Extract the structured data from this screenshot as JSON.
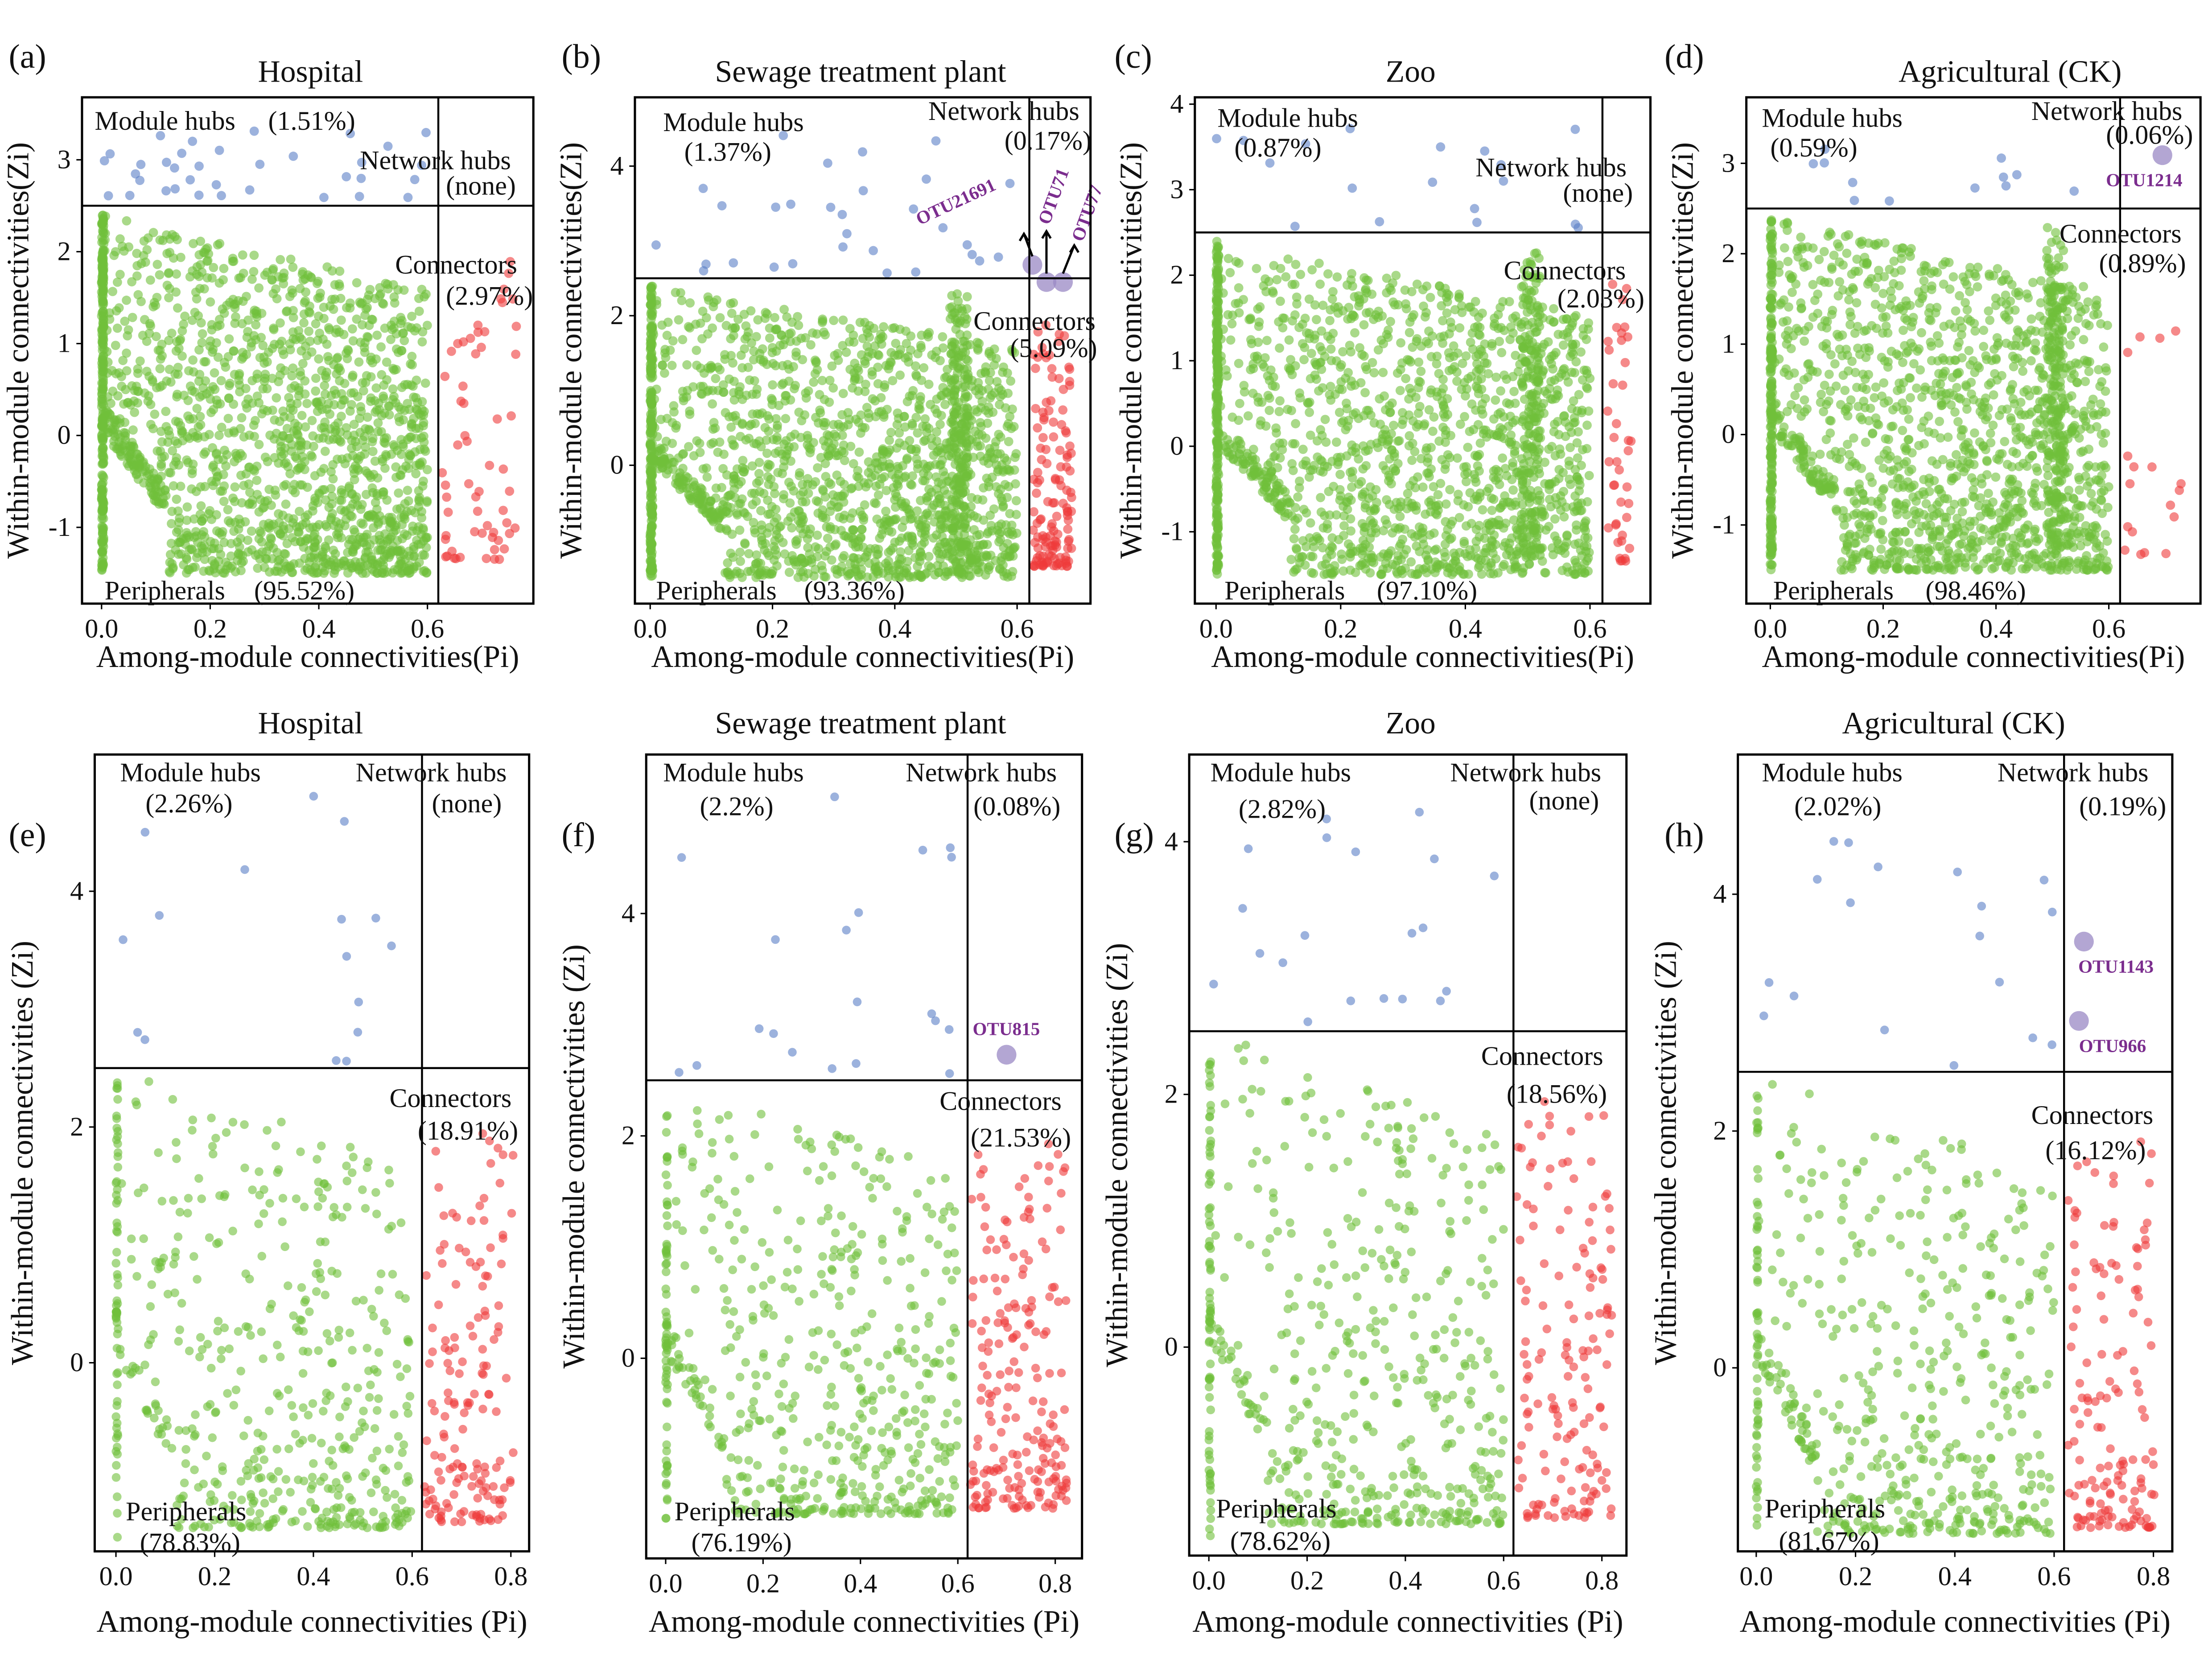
{
  "colors": {
    "peripheral": "#6fbf3a",
    "connector": "#ee3b3b",
    "module_hub": "#5a7fc6",
    "network_hub": "#9a88c4",
    "highlight_text": "#7b2d8e"
  },
  "chart_data": [
    {
      "panel": "(a)",
      "type": "scatter",
      "title": "Hospital",
      "xlabel": "Among-module connectivities(Pi)",
      "ylabel": "Within-module connectivities(Zi)",
      "xlim": [
        -0.036,
        0.795
      ],
      "ylim": [
        -1.83,
        3.68
      ],
      "xticks": [
        "0.0",
        "0.2",
        "0.4",
        "0.6"
      ],
      "yticks": [
        "-1",
        "0",
        "1",
        "2",
        "3"
      ],
      "thresholds": {
        "pi": 0.62,
        "zi": 2.5
      },
      "roles": {
        "module_hubs": {
          "label": "Module hubs",
          "pct": "(1.51%)"
        },
        "network_hubs": {
          "label": "Network hubs",
          "pct": "(none)"
        },
        "connectors": {
          "label": "Connectors",
          "pct": "(2.97%)"
        },
        "peripherals": {
          "label": "Peripherals",
          "pct": "(95.52%)"
        }
      },
      "approx_counts": {
        "peripherals": 1800,
        "connectors": 60,
        "module_hubs": 35
      },
      "highlights": []
    },
    {
      "panel": "(b)",
      "type": "scatter",
      "title": "Sewage treatment plant",
      "xlabel": "Among-module connectivities(Pi)",
      "ylabel": "Within-module connectivities(Zi)",
      "xlim": [
        -0.025,
        0.72
      ],
      "ylim": [
        -1.85,
        4.92
      ],
      "xticks": [
        "0.0",
        "0.2",
        "0.4",
        "0.6"
      ],
      "yticks": [
        "0",
        "2",
        "4"
      ],
      "thresholds": {
        "pi": 0.62,
        "zi": 2.5
      },
      "roles": {
        "module_hubs": {
          "label": "Module hubs",
          "pct": "(1.37%)"
        },
        "network_hubs": {
          "label": "Network hubs",
          "pct": "(0.17%)"
        },
        "connectors": {
          "label": "Connectors",
          "pct": "(5.09%)"
        },
        "peripherals": {
          "label": "Peripherals",
          "pct": "(93.36%)"
        }
      },
      "approx_counts": {
        "peripherals": 1900,
        "connectors": 130,
        "module_hubs": 30
      },
      "highlights": [
        {
          "label": "OTU21691",
          "pi": 0.625,
          "zi": 2.68
        },
        {
          "label": "OTU71",
          "pi": 0.648,
          "zi": 2.45
        },
        {
          "label": "OTU77",
          "pi": 0.675,
          "zi": 2.45
        }
      ]
    },
    {
      "panel": "(c)",
      "type": "scatter",
      "title": "Zoo",
      "xlabel": "Among-module connectivities(Pi)",
      "ylabel": "Within-module connectivities(Zi)",
      "xlim": [
        -0.034,
        0.697
      ],
      "ylim": [
        -1.84,
        4.08
      ],
      "xticks": [
        "0.0",
        "0.2",
        "0.4",
        "0.6"
      ],
      "yticks": [
        "-1",
        "0",
        "1",
        "2",
        "3",
        "4"
      ],
      "thresholds": {
        "pi": 0.62,
        "zi": 2.5
      },
      "roles": {
        "module_hubs": {
          "label": "Module hubs",
          "pct": "(0.87%)"
        },
        "network_hubs": {
          "label": "Network hubs",
          "pct": "(none)"
        },
        "connectors": {
          "label": "Connectors",
          "pct": "(2.03%)"
        },
        "peripherals": {
          "label": "Peripherals",
          "pct": "(97.10%)"
        }
      },
      "approx_counts": {
        "peripherals": 1800,
        "connectors": 40,
        "module_hubs": 18
      },
      "highlights": []
    },
    {
      "panel": "(d)",
      "type": "scatter",
      "title": "Agricultural (CK)",
      "xlabel": "Among-module connectivities(Pi)",
      "ylabel": "Within-module connectivities(Zi)",
      "xlim": [
        -0.0425,
        0.7625
      ],
      "ylim": [
        -1.87,
        3.73
      ],
      "xticks": [
        "0.0",
        "0.2",
        "0.4",
        "0.6"
      ],
      "yticks": [
        "-1",
        "0",
        "1",
        "2",
        "3"
      ],
      "thresholds": {
        "pi": 0.62,
        "zi": 2.5
      },
      "roles": {
        "module_hubs": {
          "label": "Module hubs",
          "pct": "(0.59%)"
        },
        "network_hubs": {
          "label": "Network hubs",
          "pct": "(0.06%)"
        },
        "connectors": {
          "label": "Connectors",
          "pct": "(0.89%)"
        },
        "peripherals": {
          "label": "Peripherals",
          "pct": "(98.46%)"
        }
      },
      "approx_counts": {
        "peripherals": 1800,
        "connectors": 18,
        "module_hubs": 12
      },
      "highlights": [
        {
          "label": "OTU1214",
          "pi": 0.695,
          "zi": 3.09
        }
      ]
    },
    {
      "panel": "(e)",
      "type": "scatter",
      "title": "Hospital",
      "xlabel": "Among-module connectivities (Pi)",
      "ylabel": "Within-module connectivities (Zi)",
      "xlim": [
        -0.043,
        0.837
      ],
      "ylim": [
        -1.6,
        5.16
      ],
      "xticks": [
        "0.0",
        "0.2",
        "0.4",
        "0.6",
        "0.8"
      ],
      "yticks": [
        "0",
        "2",
        "4"
      ],
      "thresholds": {
        "pi": 0.62,
        "zi": 2.5
      },
      "roles": {
        "module_hubs": {
          "label": "Module hubs",
          "pct": "(2.26%)"
        },
        "network_hubs": {
          "label": "Network hubs",
          "pct": "(none)"
        },
        "connectors": {
          "label": "Connectors",
          "pct": "(18.91%)"
        },
        "peripherals": {
          "label": "Peripherals",
          "pct": "(78.83%)"
        }
      },
      "approx_counts": {
        "peripherals": 520,
        "connectors": 150,
        "module_hubs": 16
      },
      "highlights": []
    },
    {
      "panel": "(f)",
      "type": "scatter",
      "title": "Sewage treatment plant",
      "xlabel": "Among-module connectivities (Pi)",
      "ylabel": "Within-module connectivities (Zi)",
      "xlim": [
        -0.04,
        0.855
      ],
      "ylim": [
        -1.8,
        5.43
      ],
      "xticks": [
        "0.0",
        "0.2",
        "0.4",
        "0.6",
        "0.8"
      ],
      "yticks": [
        "0",
        "2",
        "4"
      ],
      "thresholds": {
        "pi": 0.62,
        "zi": 2.5
      },
      "roles": {
        "module_hubs": {
          "label": "Module hubs",
          "pct": "(2.2%)"
        },
        "network_hubs": {
          "label": "Network hubs",
          "pct": "(0.08%)"
        },
        "connectors": {
          "label": "Connectors",
          "pct": "(21.53%)"
        },
        "peripherals": {
          "label": "Peripherals",
          "pct": "(76.19%)"
        }
      },
      "approx_counts": {
        "peripherals": 560,
        "connectors": 200,
        "module_hubs": 20
      },
      "highlights": [
        {
          "label": "OTU815",
          "pi": 0.7,
          "zi": 2.73
        }
      ]
    },
    {
      "panel": "(g)",
      "type": "scatter",
      "title": "Zoo",
      "xlabel": "Among-module connectivities (Pi)",
      "ylabel": "Within-module connectivities (Zi)",
      "xlim": [
        -0.04,
        0.85
      ],
      "ylim": [
        -1.65,
        4.69
      ],
      "xticks": [
        "0.0",
        "0.2",
        "0.4",
        "0.6",
        "0.8"
      ],
      "yticks": [
        "0",
        "2",
        "4"
      ],
      "thresholds": {
        "pi": 0.62,
        "zi": 2.5
      },
      "roles": {
        "module_hubs": {
          "label": "Module hubs",
          "pct": "(2.82%)"
        },
        "network_hubs": {
          "label": "Network hubs",
          "pct": "(none)"
        },
        "connectors": {
          "label": "Connectors",
          "pct": "(18.56%)"
        },
        "peripherals": {
          "label": "Peripherals",
          "pct": "(78.62%)"
        }
      },
      "approx_counts": {
        "peripherals": 540,
        "connectors": 150,
        "module_hubs": 20
      },
      "highlights": []
    },
    {
      "panel": "(h)",
      "type": "scatter",
      "title": "Agricultural (CK)",
      "xlabel": "Among-module connectivities (Pi)",
      "ylabel": "Within-module connectivities (Zi)",
      "xlim": [
        -0.037,
        0.838
      ],
      "ylim": [
        -1.55,
        5.18
      ],
      "xticks": [
        "0.0",
        "0.2",
        "0.4",
        "0.6",
        "0.8"
      ],
      "yticks": [
        "0",
        "2",
        "4"
      ],
      "thresholds": {
        "pi": 0.62,
        "zi": 2.5
      },
      "roles": {
        "module_hubs": {
          "label": "Module hubs",
          "pct": "(2.02%)"
        },
        "network_hubs": {
          "label": "Network hubs",
          "pct": "(0.19%)"
        },
        "connectors": {
          "label": "Connectors",
          "pct": "(16.12%)"
        },
        "peripherals": {
          "label": "Peripherals",
          "pct": "(81.67%)"
        }
      },
      "approx_counts": {
        "peripherals": 540,
        "connectors": 140,
        "module_hubs": 18
      },
      "highlights": [
        {
          "label": "OTU1143",
          "pi": 0.66,
          "zi": 3.6
        },
        {
          "label": "OTU966",
          "pi": 0.65,
          "zi": 2.93
        }
      ]
    }
  ]
}
